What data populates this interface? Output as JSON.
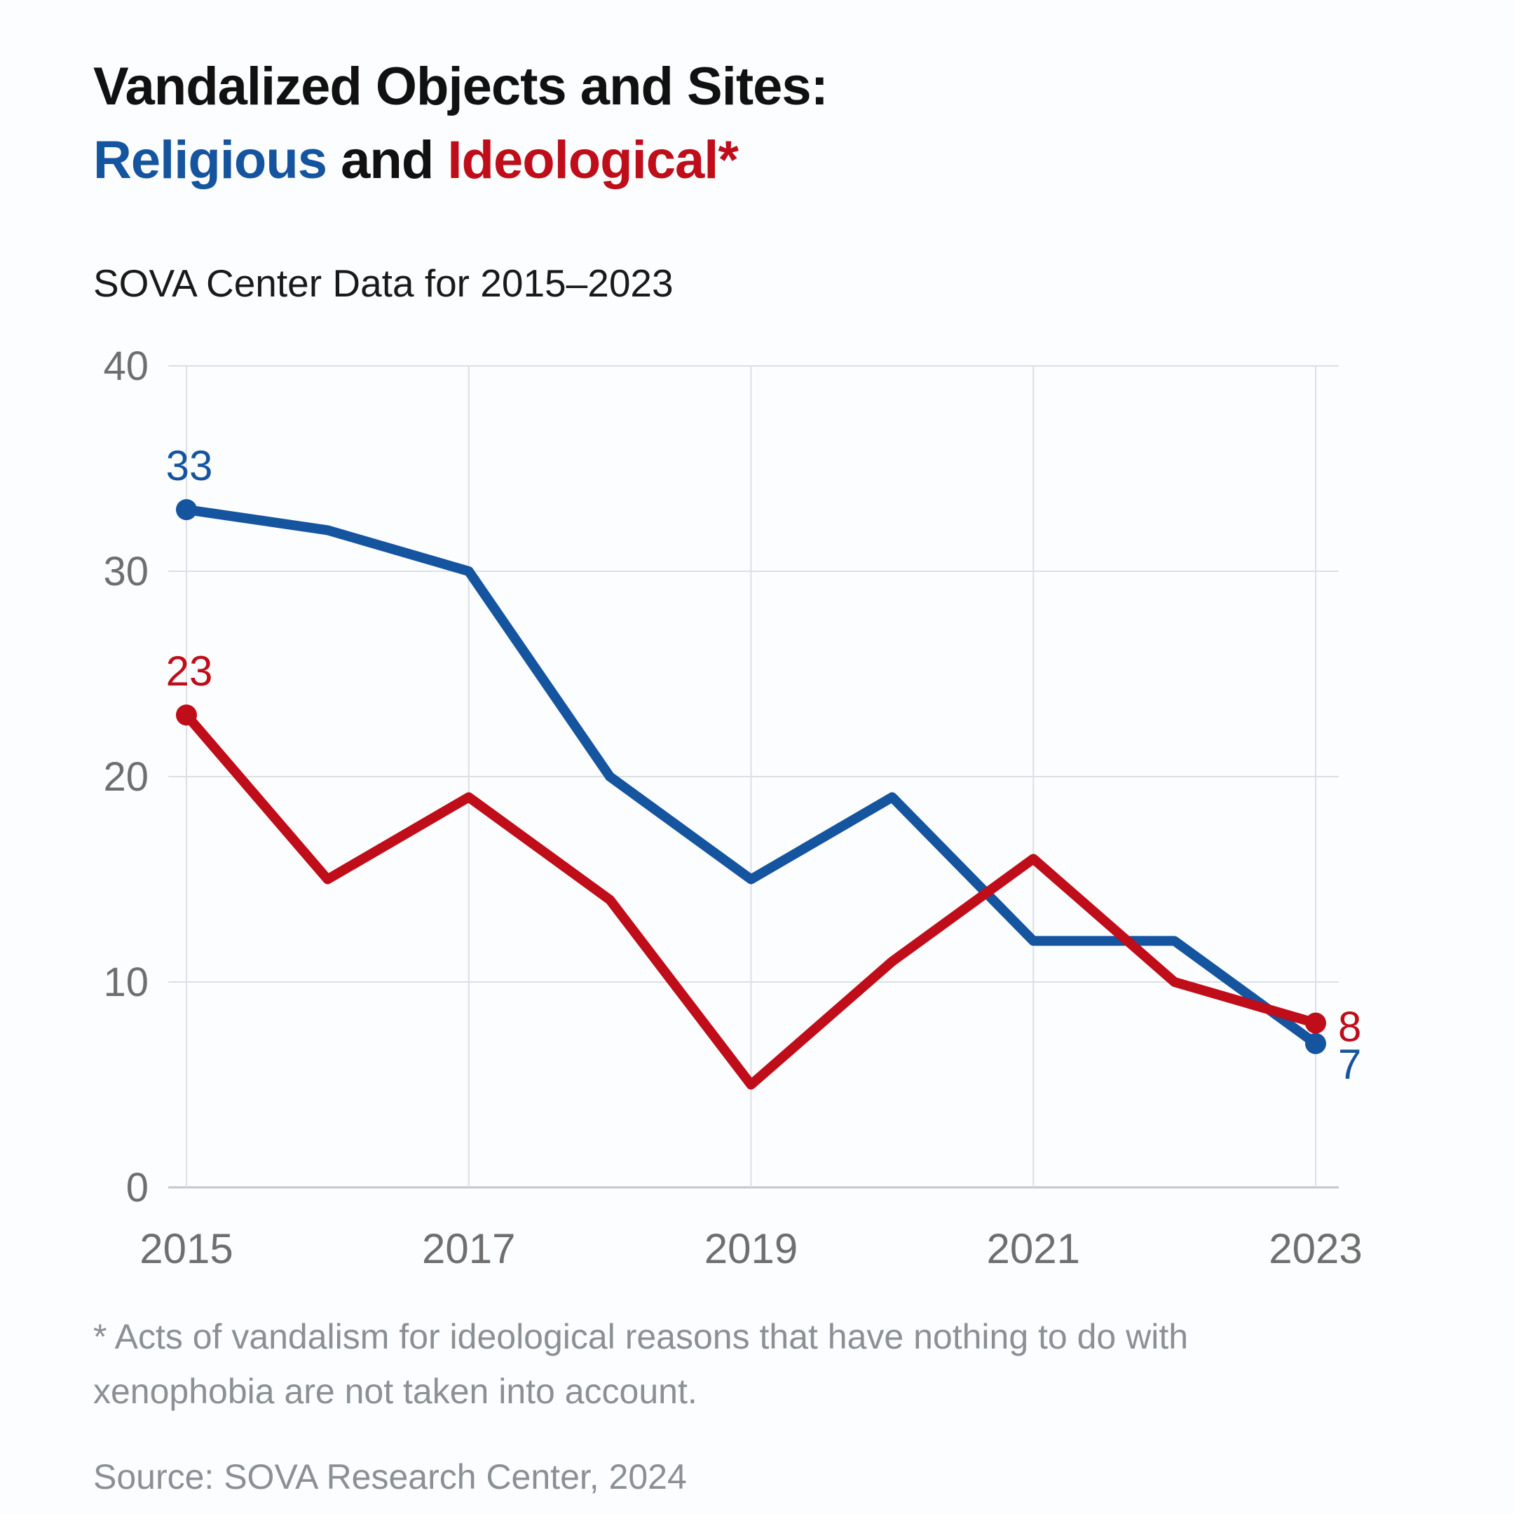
{
  "title": {
    "line1": "Vandalized Objects and Sites:",
    "line2_religious": "Religious",
    "line2_and": " and ",
    "line2_ideological": "Ideological*"
  },
  "subtitle": "SOVA Center Data for 2015–2023",
  "footnote": "* Acts of vandalism for ideological reasons that have nothing to do with xenophobia are not taken into account.",
  "source": "Source: SOVA Research Center, 2024",
  "colors": {
    "religious": "#15549E",
    "ideological": "#C00D1A",
    "title_text": "#111111",
    "axis_label": "#6F6F6F",
    "gridline": "#DCDFE3",
    "axis_line": "#C3C7CB",
    "footnote_text": "#8B9095",
    "background": "#FBFDFE"
  },
  "chart_data": {
    "type": "line",
    "x": [
      2015,
      2016,
      2017,
      2018,
      2019,
      2020,
      2021,
      2022,
      2023
    ],
    "series": [
      {
        "name": "Religious",
        "color_key": "religious",
        "values": [
          33,
          32,
          30,
          20,
          15,
          19,
          12,
          12,
          7
        ],
        "endpoint_labels": {
          "first": "33",
          "last": "7"
        }
      },
      {
        "name": "Ideological",
        "color_key": "ideological",
        "values": [
          23,
          15,
          19,
          14,
          5,
          11,
          16,
          10,
          8
        ],
        "endpoint_labels": {
          "first": "23",
          "last": "8"
        }
      }
    ],
    "x_tick_labels": [
      "2015",
      "2017",
      "2019",
      "2021",
      "2023"
    ],
    "x_tick_years": [
      2015,
      2017,
      2019,
      2021,
      2023
    ],
    "y_ticks": [
      0,
      10,
      20,
      30,
      40
    ],
    "ylim": [
      0,
      40
    ],
    "grid": true,
    "legend_position": "none-colors-in-title"
  }
}
